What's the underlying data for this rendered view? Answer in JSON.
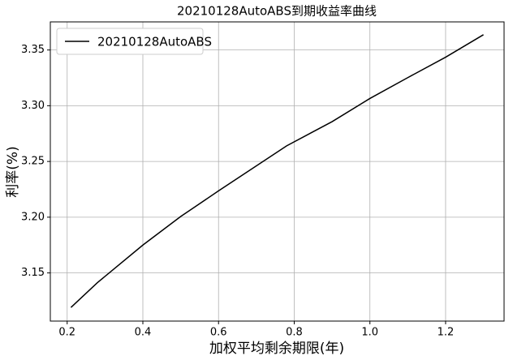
{
  "chart_data": {
    "type": "line",
    "title": "20210128AutoABS到期收益率曲线",
    "x_label": "加权平均剩余期限(年)",
    "y_label": "利率(%)",
    "x": [
      0.21,
      0.28,
      0.4,
      0.5,
      0.6,
      0.78,
      0.9,
      1.0,
      1.1,
      1.2,
      1.3
    ],
    "series": [
      {
        "name": "20210128AutoABS",
        "color": "#000000",
        "values": [
          3.119,
          3.1413,
          3.175,
          3.2006,
          3.2236,
          3.264,
          3.2857,
          3.3065,
          3.3252,
          3.3435,
          3.3637
        ]
      }
    ],
    "xlim": [
      0.1555,
      1.3545
    ],
    "xticks": [
      0.2,
      0.4,
      0.6,
      0.8,
      1.0,
      1.2
    ],
    "ylim": [
      3.1068,
      3.3752
    ],
    "yticks": [
      3.15,
      3.2,
      3.25,
      3.3,
      3.35
    ],
    "grid": true,
    "legend": "upper-left"
  }
}
